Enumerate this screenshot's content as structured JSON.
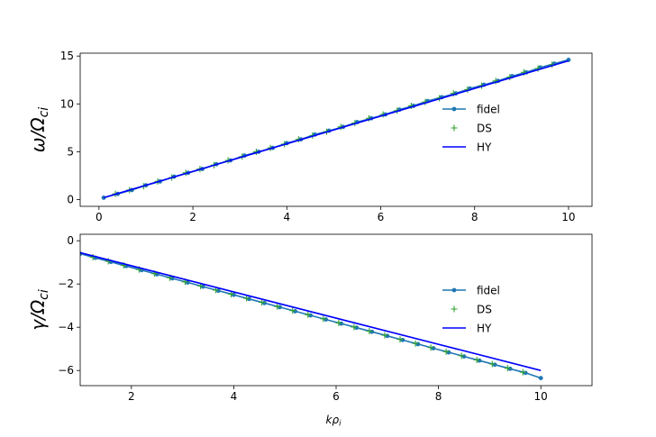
{
  "chart_data": [
    {
      "type": "line",
      "title": "",
      "xlabel": "",
      "ylabel": "ω/Ω_ci",
      "xlim": [
        -0.4,
        10.5
      ],
      "ylim": [
        -0.7,
        15.3
      ],
      "xticks": [
        0,
        2,
        4,
        6,
        8,
        10
      ],
      "yticks": [
        0,
        5,
        10,
        15
      ],
      "legend_position": "center-right",
      "series": [
        {
          "name": "fidel",
          "color": "#1f77b4",
          "style": "line-dot",
          "x": [
            0.1,
            0.4,
            0.7,
            1.0,
            1.3,
            1.6,
            1.9,
            2.2,
            2.5,
            2.8,
            3.1,
            3.4,
            3.7,
            4.0,
            4.3,
            4.6,
            4.9,
            5.2,
            5.5,
            5.8,
            6.1,
            6.4,
            6.7,
            7.0,
            7.3,
            7.6,
            7.9,
            8.2,
            8.5,
            8.8,
            9.1,
            9.4,
            9.7,
            10.0
          ],
          "y": [
            0.2,
            0.6,
            1.0,
            1.5,
            1.9,
            2.4,
            2.8,
            3.2,
            3.7,
            4.1,
            4.6,
            5.0,
            5.4,
            5.9,
            6.3,
            6.8,
            7.2,
            7.6,
            8.1,
            8.5,
            8.9,
            9.4,
            9.8,
            10.3,
            10.7,
            11.1,
            11.6,
            12.0,
            12.4,
            12.9,
            13.3,
            13.8,
            14.2,
            14.6
          ]
        },
        {
          "name": "DS",
          "color": "#2ca02c",
          "style": "plus",
          "x": [
            0.35,
            0.65,
            0.95,
            1.25,
            1.55,
            1.85,
            2.15,
            2.45,
            2.75,
            3.05,
            3.35,
            3.65,
            3.95,
            4.25,
            4.55,
            4.85,
            5.15,
            5.45,
            5.75,
            6.05,
            6.35,
            6.65,
            6.95,
            7.25,
            7.55,
            7.85,
            8.15,
            8.45,
            8.75,
            9.05,
            9.35,
            9.65
          ],
          "y": [
            0.6,
            1.0,
            1.4,
            1.9,
            2.3,
            2.8,
            3.2,
            3.6,
            4.1,
            4.5,
            5.0,
            5.4,
            5.8,
            6.3,
            6.7,
            7.1,
            7.6,
            8.0,
            8.5,
            8.9,
            9.3,
            9.8,
            10.2,
            10.6,
            11.1,
            11.5,
            11.9,
            12.4,
            12.8,
            13.3,
            13.7,
            14.1
          ]
        },
        {
          "name": "HY",
          "color": "#0000ff",
          "style": "line",
          "x": [
            0.1,
            10.0
          ],
          "y": [
            0.2,
            14.5
          ]
        }
      ]
    },
    {
      "type": "line",
      "title": "",
      "xlabel": "kρ_i",
      "ylabel": "γ/Ω_ci",
      "xlim": [
        1.0,
        11.0
      ],
      "ylim": [
        -6.7,
        0.3
      ],
      "xticks": [
        2,
        4,
        6,
        8,
        10
      ],
      "yticks": [
        0,
        -2,
        -4,
        -6
      ],
      "legend_position": "center-right",
      "series": [
        {
          "name": "fidel",
          "color": "#1f77b4",
          "style": "line-dot",
          "x": [
            1.0,
            1.3,
            1.6,
            1.9,
            2.2,
            2.5,
            2.8,
            3.1,
            3.4,
            3.7,
            4.0,
            4.3,
            4.6,
            4.9,
            5.2,
            5.5,
            5.8,
            6.1,
            6.4,
            6.7,
            7.0,
            7.3,
            7.6,
            7.9,
            8.2,
            8.5,
            8.8,
            9.1,
            9.4,
            9.7,
            10.0
          ],
          "y": [
            -0.6,
            -0.79,
            -0.98,
            -1.17,
            -1.36,
            -1.55,
            -1.74,
            -1.93,
            -2.12,
            -2.31,
            -2.5,
            -2.69,
            -2.88,
            -3.07,
            -3.26,
            -3.45,
            -3.64,
            -3.83,
            -4.02,
            -4.21,
            -4.4,
            -4.59,
            -4.78,
            -4.97,
            -5.16,
            -5.35,
            -5.54,
            -5.73,
            -5.92,
            -6.11,
            -6.35
          ]
        },
        {
          "name": "DS",
          "color": "#2ca02c",
          "style": "plus",
          "x": [
            1.25,
            1.55,
            1.85,
            2.15,
            2.45,
            2.75,
            3.05,
            3.35,
            3.65,
            3.95,
            4.25,
            4.55,
            4.85,
            5.15,
            5.45,
            5.75,
            6.05,
            6.35,
            6.65,
            6.95,
            7.25,
            7.55,
            7.85,
            8.15,
            8.45,
            8.75,
            9.05,
            9.35,
            9.65
          ],
          "y": [
            -0.76,
            -0.95,
            -1.14,
            -1.33,
            -1.52,
            -1.71,
            -1.9,
            -2.09,
            -2.28,
            -2.47,
            -2.66,
            -2.85,
            -3.04,
            -3.23,
            -3.42,
            -3.61,
            -3.8,
            -3.99,
            -4.18,
            -4.37,
            -4.56,
            -4.75,
            -4.94,
            -5.13,
            -5.32,
            -5.51,
            -5.7,
            -5.89,
            -6.08
          ]
        },
        {
          "name": "HY",
          "color": "#0000ff",
          "style": "line",
          "x": [
            1.0,
            10.0
          ],
          "y": [
            -0.55,
            -6.0
          ]
        }
      ]
    }
  ]
}
